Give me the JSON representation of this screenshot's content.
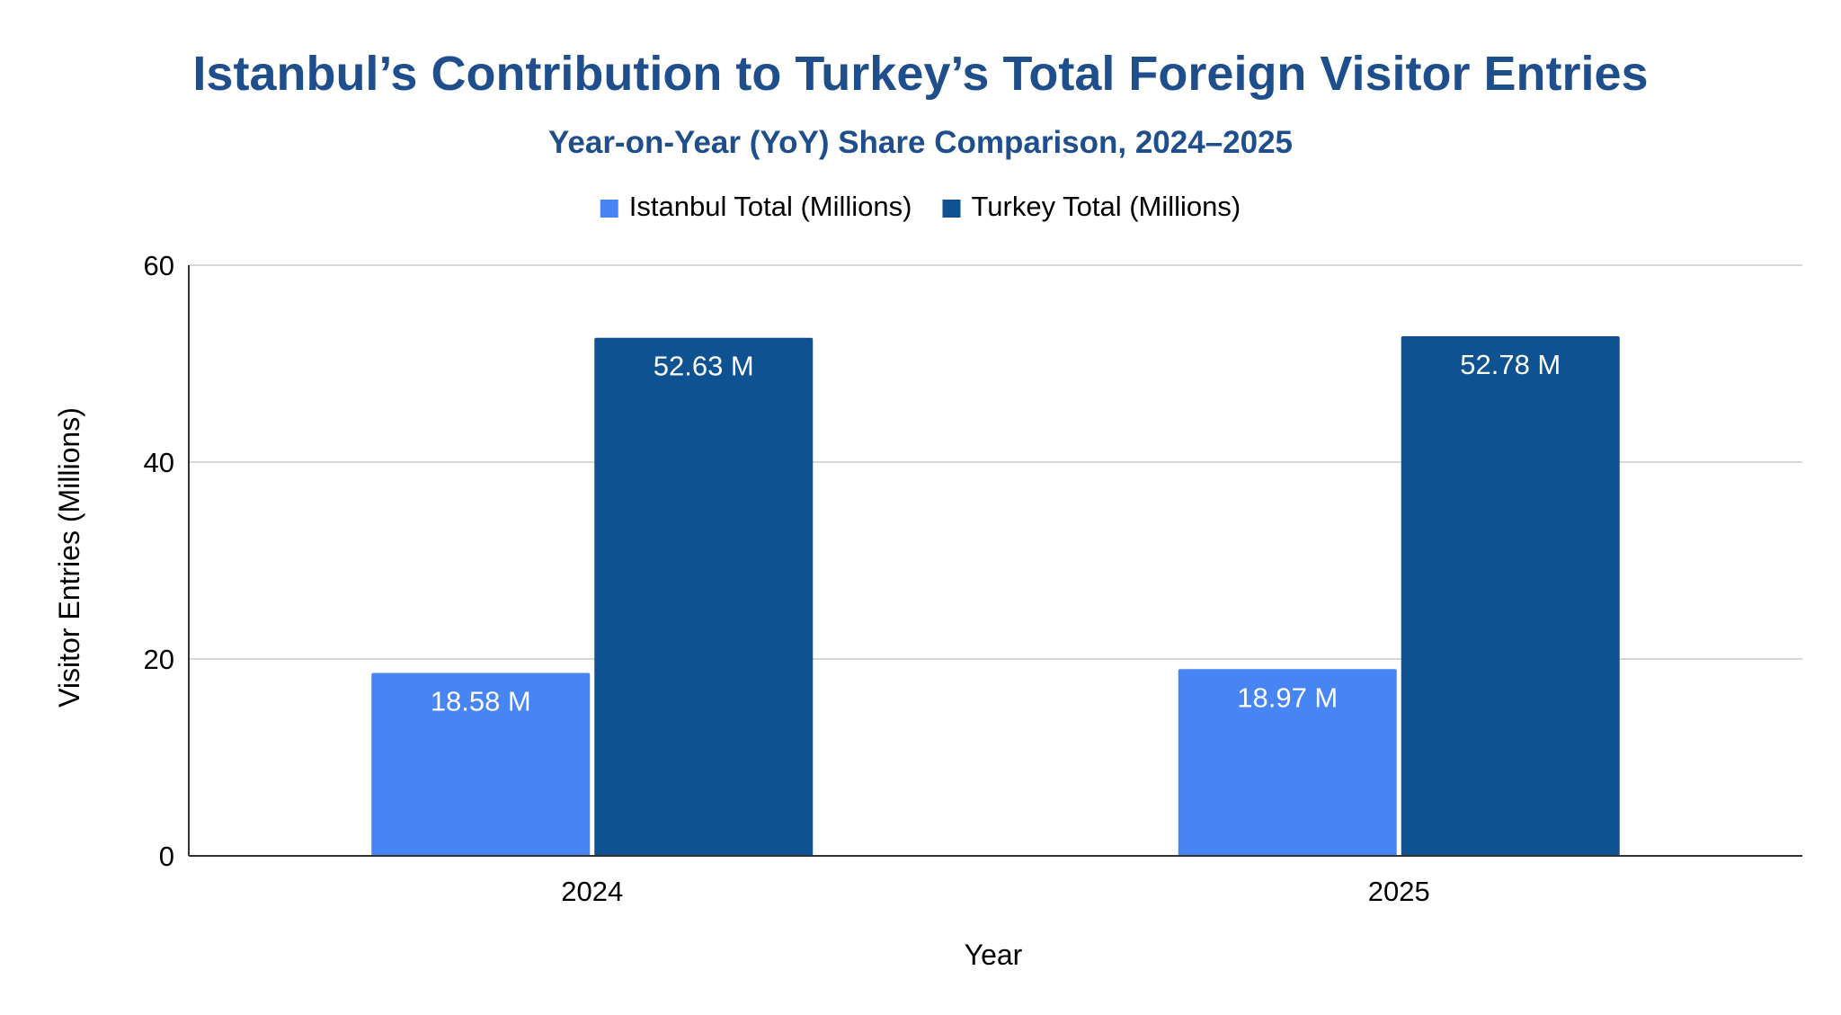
{
  "chart_data": {
    "type": "bar",
    "title": "Istanbul’s Contribution to Turkey’s Total Foreign Visitor Entries",
    "subtitle": "Year-on-Year (YoY) Share Comparison, 2024–2025",
    "xlabel": "Year",
    "ylabel": "Visitor Entries (Millions)",
    "categories": [
      "2024",
      "2025"
    ],
    "series": [
      {
        "name": "Istanbul Total (Millions)",
        "color": "#4785f4",
        "values": [
          18.58,
          18.97
        ],
        "data_labels": [
          "18.58 M",
          "18.97 M"
        ]
      },
      {
        "name": "Turkey Total (Millions)",
        "color": "#0f5292",
        "values": [
          52.63,
          52.78
        ],
        "data_labels": [
          "52.63 M",
          "52.78 M"
        ]
      }
    ],
    "ylim": [
      0,
      60
    ],
    "yticks": [
      0,
      20,
      40,
      60
    ],
    "ytick_labels": [
      "0",
      "20",
      "40",
      "60"
    ],
    "grid": true,
    "legend_position": "top-center",
    "colors": {
      "title": "#1f4e8c",
      "text": "#000000",
      "data_label": "#ffffff",
      "gridline": "#cccccc",
      "axis": "#333333"
    }
  }
}
